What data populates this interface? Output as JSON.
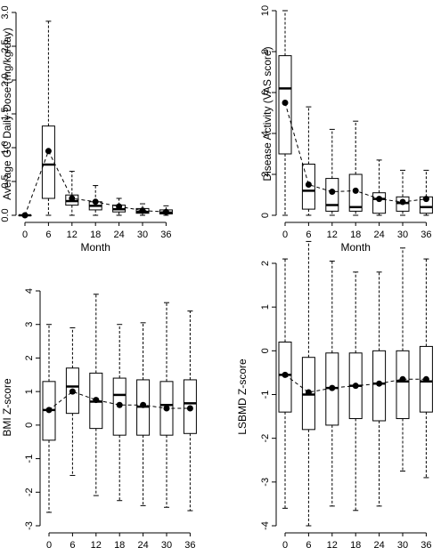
{
  "chart_data": [
    {
      "type": "box",
      "xlabel": "Month",
      "ylabel": "Average GC Daily Dose (mg/kg/day)",
      "categories": [
        "0",
        "6",
        "12",
        "18",
        "24",
        "30",
        "36"
      ],
      "y_ticks": [
        "0.0",
        "0.5",
        "1.0",
        "1.5",
        "2.0",
        "2.5",
        "3.0"
      ],
      "ylim": [
        0,
        3.0
      ],
      "boxes": [
        {
          "min": 0,
          "q1": 0,
          "median": 0,
          "q3": 0,
          "max": 0
        },
        {
          "min": 0.0,
          "q1": 0.25,
          "median": 0.75,
          "q3": 1.32,
          "max": 2.87
        },
        {
          "min": 0.0,
          "q1": 0.15,
          "median": 0.21,
          "q3": 0.3,
          "max": 0.65
        },
        {
          "min": 0.0,
          "q1": 0.08,
          "median": 0.14,
          "q3": 0.2,
          "max": 0.44
        },
        {
          "min": 0.0,
          "q1": 0.05,
          "median": 0.09,
          "q3": 0.15,
          "max": 0.25
        },
        {
          "min": 0.0,
          "q1": 0.03,
          "median": 0.05,
          "q3": 0.1,
          "max": 0.17
        },
        {
          "min": 0.0,
          "q1": 0.02,
          "median": 0.04,
          "q3": 0.08,
          "max": 0.14
        }
      ],
      "means": [
        0.0,
        0.95,
        0.25,
        0.2,
        0.13,
        0.07,
        0.05
      ]
    },
    {
      "type": "box",
      "xlabel": "Month",
      "ylabel": "Disease Activity (VAS score)",
      "categories": [
        "0",
        "6",
        "12",
        "18",
        "24",
        "30",
        "36"
      ],
      "y_ticks": [
        "0",
        "2",
        "4",
        "6",
        "8",
        "10"
      ],
      "ylim": [
        0,
        10
      ],
      "boxes": [
        {
          "min": 0,
          "q1": 3.0,
          "median": 6.2,
          "q3": 7.8,
          "max": 10.0
        },
        {
          "min": 0,
          "q1": 0.3,
          "median": 1.2,
          "q3": 2.5,
          "max": 5.3
        },
        {
          "min": 0,
          "q1": 0.2,
          "median": 0.5,
          "q3": 1.8,
          "max": 4.2
        },
        {
          "min": 0,
          "q1": 0.2,
          "median": 0.4,
          "q3": 2.0,
          "max": 4.6
        },
        {
          "min": 0,
          "q1": 0.1,
          "median": 0.8,
          "q3": 1.1,
          "max": 2.7
        },
        {
          "min": 0,
          "q1": 0.2,
          "median": 0.6,
          "q3": 0.9,
          "max": 2.2
        },
        {
          "min": 0,
          "q1": 0.1,
          "median": 0.4,
          "q3": 0.9,
          "max": 2.2
        }
      ],
      "means": [
        5.5,
        1.5,
        1.15,
        1.2,
        0.8,
        0.65,
        0.8
      ]
    },
    {
      "type": "box",
      "xlabel": "Month",
      "ylabel": "BMI Z-score",
      "categories": [
        "0",
        "6",
        "12",
        "18",
        "24",
        "30",
        "36"
      ],
      "y_ticks": [
        "-3",
        "-2",
        "-1",
        "0",
        "1",
        "2",
        "3",
        "4"
      ],
      "ylim": [
        -3,
        4
      ],
      "boxes": [
        {
          "min": -2.6,
          "q1": -0.45,
          "median": 0.45,
          "q3": 1.3,
          "max": 3.0
        },
        {
          "min": -1.5,
          "q1": 0.35,
          "median": 1.15,
          "q3": 1.7,
          "max": 2.9
        },
        {
          "min": -2.1,
          "q1": -0.1,
          "median": 0.7,
          "q3": 1.55,
          "max": 3.9
        },
        {
          "min": -2.25,
          "q1": -0.3,
          "median": 0.9,
          "q3": 1.4,
          "max": 3.0
        },
        {
          "min": -2.4,
          "q1": -0.3,
          "median": 0.55,
          "q3": 1.35,
          "max": 3.05
        },
        {
          "min": -2.45,
          "q1": -0.3,
          "median": 0.6,
          "q3": 1.3,
          "max": 3.65
        },
        {
          "min": -2.55,
          "q1": -0.25,
          "median": 0.65,
          "q3": 1.35,
          "max": 3.4
        }
      ],
      "means": [
        0.45,
        1.0,
        0.75,
        0.6,
        0.6,
        0.5,
        0.5
      ]
    },
    {
      "type": "box",
      "xlabel": "Month",
      "ylabel": "LSBMD Z-score",
      "categories": [
        "0",
        "6",
        "12",
        "18",
        "24",
        "30",
        "36"
      ],
      "y_ticks": [
        "-4",
        "-3",
        "-2",
        "-1",
        "0",
        "1",
        "2"
      ],
      "ylim": [
        -4,
        2
      ],
      "boxes": [
        {
          "min": -3.6,
          "q1": -1.4,
          "median": -0.55,
          "q3": 0.2,
          "max": 2.1
        },
        {
          "min": -4.0,
          "q1": -1.8,
          "median": -1.0,
          "q3": -0.15,
          "max": 2.5
        },
        {
          "min": -3.55,
          "q1": -1.7,
          "median": -0.85,
          "q3": -0.05,
          "max": 2.05
        },
        {
          "min": -3.65,
          "q1": -1.55,
          "median": -0.8,
          "q3": -0.05,
          "max": 1.8
        },
        {
          "min": -3.55,
          "q1": -1.6,
          "median": -0.75,
          "q3": 0.0,
          "max": 1.8
        },
        {
          "min": -2.75,
          "q1": -1.55,
          "median": -0.7,
          "q3": 0.0,
          "max": 2.35
        },
        {
          "min": -2.9,
          "q1": -1.4,
          "median": -0.7,
          "q3": 0.1,
          "max": 2.1
        }
      ],
      "means": [
        -0.55,
        -0.95,
        -0.85,
        -0.8,
        -0.75,
        -0.65,
        -0.65
      ]
    }
  ]
}
